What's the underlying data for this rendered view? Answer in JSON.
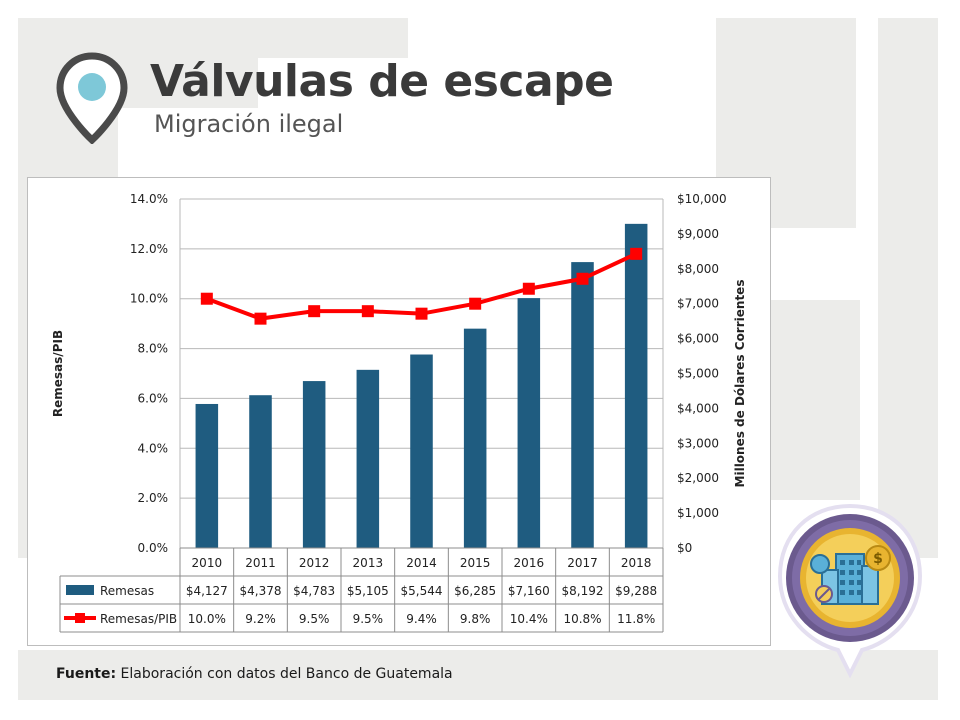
{
  "slide": {
    "title": "Válvulas de escape",
    "subtitle": "Migración ilegal",
    "source_label": "Fuente:",
    "source_text": " Elaboración con datos del Banco de Guatemala"
  },
  "icons": {
    "header": "location-pin-icon",
    "badge": "economy-buildings-icon"
  },
  "colors": {
    "bar": "#1f5c80",
    "line": "#ff0000",
    "pin_outer": "#4a4a4a",
    "pin_inner": "#7ec8d8",
    "badge_ring": "#6b5a8e",
    "badge_gold": "#e8b430"
  },
  "chart_data": {
    "type": "bar",
    "categories": [
      "2010",
      "2011",
      "2012",
      "2013",
      "2014",
      "2015",
      "2016",
      "2017",
      "2018"
    ],
    "series": [
      {
        "name": "Remesas",
        "type": "bar",
        "axis": "right",
        "values": [
          4127,
          4378,
          4783,
          5105,
          5544,
          6285,
          7160,
          8192,
          9288
        ],
        "labels": [
          "$4,127",
          "$4,378",
          "$4,783",
          "$5,105",
          "$5,544",
          "$6,285",
          "$7,160",
          "$8,192",
          "$9,288"
        ]
      },
      {
        "name": "Remesas/PIB",
        "type": "line",
        "axis": "left",
        "values": [
          10.0,
          9.2,
          9.5,
          9.5,
          9.4,
          9.8,
          10.4,
          10.8,
          11.8
        ],
        "labels": [
          "10.0%",
          "9.2%",
          "9.5%",
          "9.5%",
          "9.4%",
          "9.8%",
          "10.4%",
          "10.8%",
          "11.8%"
        ]
      }
    ],
    "ylabel_left": "Remesas/PIB",
    "ylabel_right": "Millones de Dólares Corrientes",
    "ylim_left": [
      0,
      14
    ],
    "ylim_right": [
      0,
      10000
    ],
    "yticks_left": [
      "0.0%",
      "2.0%",
      "4.0%",
      "6.0%",
      "8.0%",
      "10.0%",
      "12.0%",
      "14.0%"
    ],
    "yticks_right": [
      "$0",
      "$1,000",
      "$2,000",
      "$3,000",
      "$4,000",
      "$5,000",
      "$6,000",
      "$7,000",
      "$8,000",
      "$9,000",
      "$10,000"
    ],
    "grid": true,
    "legend": "data-table"
  }
}
